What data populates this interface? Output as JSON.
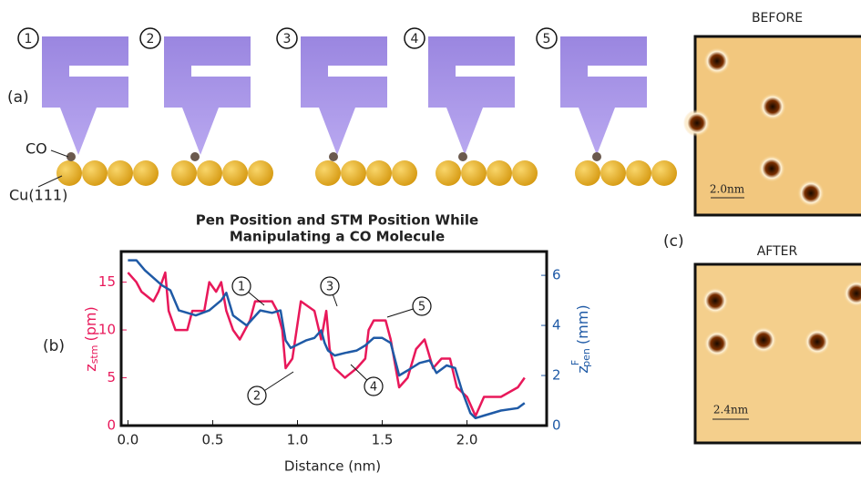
{
  "chart_data": {
    "type": "line",
    "title": [
      "Pen Position and STM Position While",
      "Manipulating a CO Molecule"
    ],
    "x_label": "Distance (nm)",
    "y_label": {
      "main": "z",
      "sub": "stm",
      "unit": "(pm)"
    },
    "y2_label": {
      "main": "z",
      "sup": "F",
      "sub": "pen",
      "unit": "(mm)"
    },
    "xlim": [
      -0.04,
      2.47
    ],
    "ylim": [
      0,
      18.2
    ],
    "y2lim": [
      0,
      6.95
    ],
    "xticks": [
      {
        "value": 0,
        "label": "0.0"
      },
      0.5,
      {
        "value": 1,
        "label": "1.0"
      },
      1.5,
      {
        "value": 2,
        "label": "2.0"
      }
    ],
    "yticks": [
      0,
      5,
      10,
      15
    ],
    "y2ticks": [
      0,
      2,
      4,
      6
    ],
    "annotations": [
      "1",
      "2",
      "3",
      "4",
      "5"
    ],
    "series": [
      {
        "color": "#e8185a",
        "axis": "y",
        "x": [
          0.0,
          0.05,
          0.08,
          0.15,
          0.18,
          0.22,
          0.24,
          0.28,
          0.35,
          0.38,
          0.45,
          0.48,
          0.52,
          0.55,
          0.58,
          0.62,
          0.66,
          0.72,
          0.75,
          0.85,
          0.88,
          0.91,
          0.93,
          0.97,
          1.02,
          1.1,
          1.14,
          1.17,
          1.19,
          1.22,
          1.28,
          1.35,
          1.4,
          1.42,
          1.45,
          1.52,
          1.55,
          1.6,
          1.65,
          1.7,
          1.75,
          1.8,
          1.85,
          1.9,
          1.94,
          2.0,
          2.05,
          2.1,
          2.2,
          2.3,
          2.34
        ],
        "values": [
          16,
          15,
          14,
          13,
          14,
          16,
          12,
          10,
          10,
          12,
          12,
          15,
          14,
          15,
          12,
          10,
          9,
          11,
          13,
          13,
          12,
          10,
          6,
          7,
          13,
          12,
          9,
          12,
          8,
          6,
          5,
          6,
          7,
          10,
          11,
          11,
          9,
          4,
          5,
          8,
          9,
          6,
          7,
          7,
          4,
          3,
          1,
          3,
          3,
          4,
          5
        ]
      },
      {
        "color": "#1f5aa6",
        "axis": "y2",
        "x": [
          0.0,
          0.05,
          0.1,
          0.2,
          0.25,
          0.3,
          0.4,
          0.48,
          0.55,
          0.58,
          0.62,
          0.7,
          0.78,
          0.85,
          0.9,
          0.93,
          0.96,
          1.05,
          1.1,
          1.14,
          1.16,
          1.18,
          1.22,
          1.28,
          1.35,
          1.4,
          1.45,
          1.5,
          1.55,
          1.6,
          1.65,
          1.72,
          1.78,
          1.82,
          1.88,
          1.93,
          1.97,
          2.02,
          2.05,
          2.1,
          2.2,
          2.3,
          2.34
        ],
        "values": [
          6.6,
          6.6,
          6.2,
          5.6,
          5.4,
          4.6,
          4.4,
          4.6,
          5.0,
          5.3,
          4.4,
          4.0,
          4.6,
          4.5,
          4.6,
          3.4,
          3.1,
          3.4,
          3.5,
          3.8,
          3.3,
          3.0,
          2.8,
          2.9,
          3.0,
          3.2,
          3.5,
          3.5,
          3.3,
          2.0,
          2.2,
          2.5,
          2.6,
          2.1,
          2.4,
          2.3,
          1.4,
          0.5,
          0.3,
          0.4,
          0.6,
          0.7,
          0.9
        ]
      }
    ]
  },
  "panels": {
    "a": "(a)",
    "b": "(b)",
    "c": "(c)"
  },
  "diagram": {
    "steps": [
      "1",
      "2",
      "3",
      "4",
      "5"
    ],
    "co_label": "CO",
    "surface_label": "Cu(111)"
  },
  "images": {
    "before": {
      "title": "BEFORE",
      "scale": "2.0nm"
    },
    "after": {
      "title": "AFTER",
      "scale": "2.4nm"
    }
  }
}
